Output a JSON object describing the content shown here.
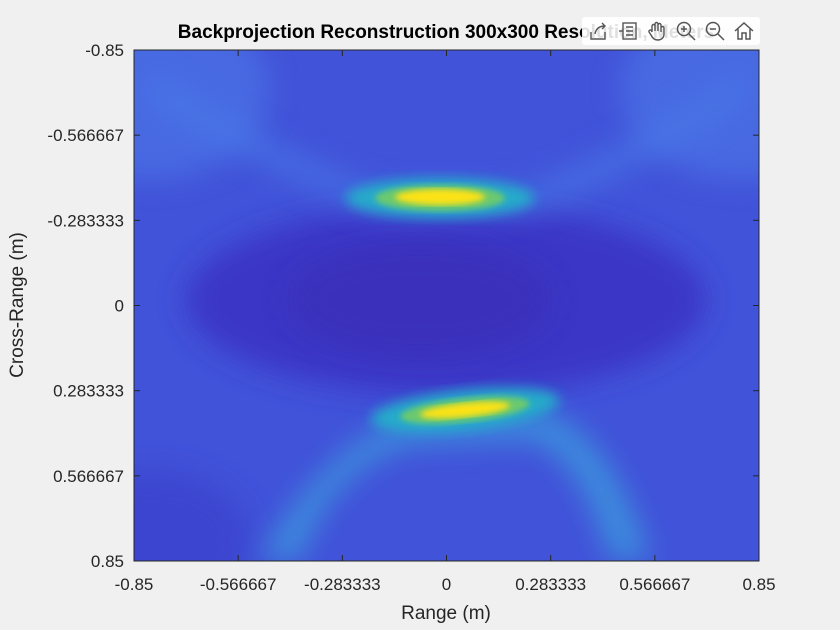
{
  "chart_data": {
    "type": "heatmap",
    "title": "Backprojection Reconstruction 300x300 Resolution, Meters",
    "xlabel": "Range (m)",
    "ylabel": "Cross-Range (m)",
    "xlim": [
      -0.85,
      0.85
    ],
    "ylim": [
      -0.85,
      0.85
    ],
    "y_direction": "reverse",
    "x_ticks": [
      "-0.85",
      "-0.566667",
      "-0.283333",
      "0",
      "0.283333",
      "0.566667",
      "0.85"
    ],
    "y_ticks": [
      "-0.85",
      "-0.566667",
      "-0.283333",
      "0",
      "0.283333",
      "0.566667",
      "0.85"
    ],
    "tick_values": [
      -0.85,
      -0.566667,
      -0.283333,
      0,
      0.283333,
      0.566667,
      0.85
    ],
    "colormap": "parula",
    "peaks": [
      {
        "x": 0.0,
        "y": -0.36,
        "intensity": 1.0
      },
      {
        "x": 0.06,
        "y": 0.35,
        "intensity": 1.0
      }
    ],
    "grid": false,
    "colors": {
      "low": "#3b36c8",
      "mid": "#27b5c9",
      "high": "#fbe219",
      "background": "#f0f0f0"
    }
  },
  "toolbar": {
    "icons": [
      "export-icon",
      "data-tips-icon",
      "pan-icon",
      "zoom-in-icon",
      "zoom-out-icon",
      "home-icon"
    ]
  }
}
